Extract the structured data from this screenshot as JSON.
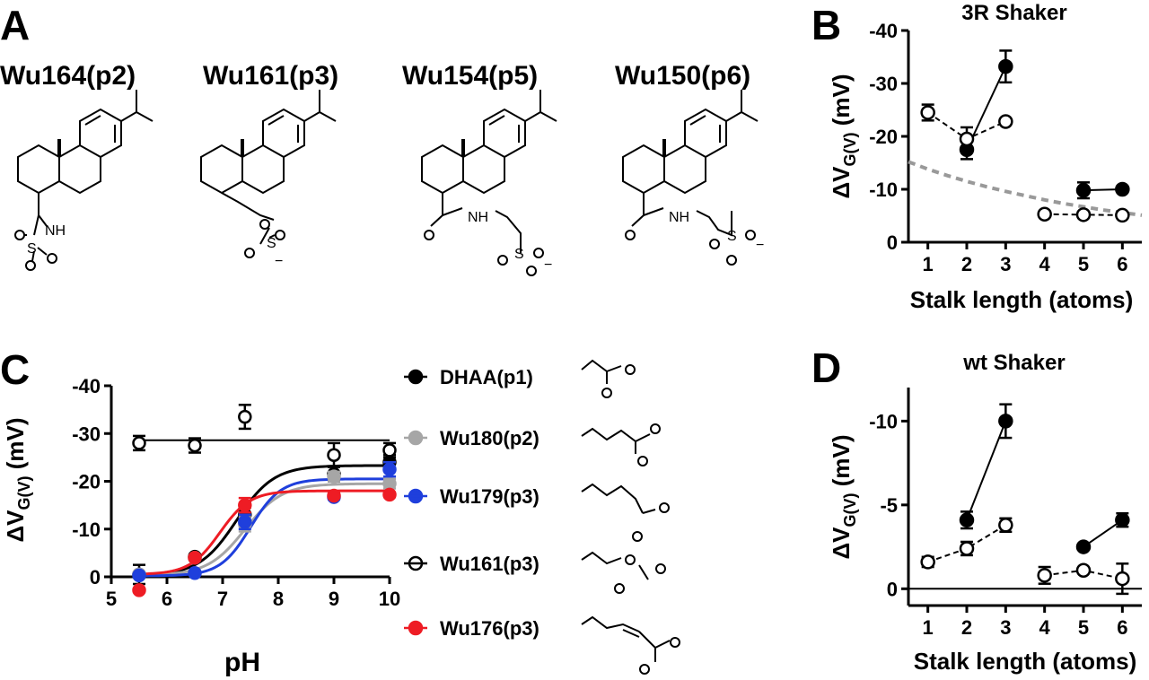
{
  "panels": {
    "A": "A",
    "B": "B",
    "C": "C",
    "D": "D"
  },
  "compounds": [
    {
      "name": "Wu164(p2)"
    },
    {
      "name": "Wu161(p3)"
    },
    {
      "name": "Wu154(p5)"
    },
    {
      "name": "Wu150(p6)"
    }
  ],
  "structure_labels": {
    "nh": "NH",
    "s": "S",
    "minus": "−"
  },
  "chart_data": [
    {
      "id": "B",
      "type": "scatter",
      "title": "3R Shaker",
      "xlabel": "Stalk length (atoms)",
      "ylabel_main": "ΔV",
      "ylabel_sub": "G(V)",
      "ylabel_unit": " (mV)",
      "xlim": [
        0.5,
        6.5
      ],
      "ylim": [
        0,
        -40
      ],
      "xticks": [
        1,
        2,
        3,
        4,
        5,
        6
      ],
      "yticks": [
        0,
        -10,
        -20,
        -30,
        -40
      ],
      "ytick_labels": [
        "0",
        "-10",
        "-20",
        "-30",
        "-40"
      ],
      "series": [
        {
          "fill": "#000000",
          "style": "solid",
          "segments": [
            [
              {
                "x": 2,
                "y": -17.5,
                "err": 1.8
              },
              {
                "x": 3,
                "y": -33.2,
                "err": 3.0
              }
            ],
            [
              {
                "x": 5,
                "y": -9.8,
                "err": 1.5
              },
              {
                "x": 6,
                "y": -10.0,
                "err": 0.5
              }
            ]
          ]
        },
        {
          "fill": "#ffffff",
          "style": "dashed",
          "segments": [
            [
              {
                "x": 1,
                "y": -24.5,
                "err": 1.5
              },
              {
                "x": 2,
                "y": -19.5,
                "err": 2.2
              },
              {
                "x": 3,
                "y": -22.8,
                "err": 0.5
              }
            ],
            [
              {
                "x": 4,
                "y": -5.3,
                "err": 0.5
              },
              {
                "x": 5,
                "y": -5.2,
                "err": 0.4
              },
              {
                "x": 6,
                "y": -5.1,
                "err": 0.4
              }
            ]
          ]
        }
      ],
      "trend": {
        "color": "#999999",
        "style": "dashed",
        "x": [
          0.5,
          1,
          1.5,
          2,
          2.5,
          3,
          3.5,
          4,
          4.5,
          5,
          5.5,
          6,
          6.5
        ],
        "y": [
          -15.2,
          -13.8,
          -12.6,
          -11.5,
          -10.5,
          -9.6,
          -8.8,
          -8.0,
          -7.3,
          -6.7,
          -6.1,
          -5.6,
          -5.1
        ]
      }
    },
    {
      "id": "C",
      "type": "scatter",
      "xlabel": "pH",
      "ylabel_main": "ΔV",
      "ylabel_sub": "G(V)",
      "ylabel_unit": " (mV)",
      "xlim": [
        5,
        10
      ],
      "ylim": [
        0,
        -40
      ],
      "xticks": [
        5,
        6,
        7,
        8,
        9,
        10
      ],
      "yticks": [
        0,
        -10,
        -20,
        -30,
        -40
      ],
      "ytick_labels": [
        "0",
        "-10",
        "-20",
        "-30",
        "-40"
      ],
      "series": [
        {
          "name": "DHAA(p1)",
          "color": "#000000",
          "fill": "#000000",
          "points": [
            {
              "x": 5.5,
              "y": -0.5,
              "err": 2.0
            },
            {
              "x": 6.5,
              "y": -4.2,
              "err": 0.5
            },
            {
              "x": 7.4,
              "y": -13.0,
              "err": 1.5
            },
            {
              "x": 9,
              "y": -21.5,
              "err": 1.5
            },
            {
              "x": 10,
              "y": -24.0,
              "err": 1.5
            }
          ],
          "fit": {
            "bottom": -0.3,
            "top": -23.3,
            "pKa": 7.25,
            "slope": 1.3
          }
        },
        {
          "name": "Wu180(p2)",
          "color": "#a6a6a6",
          "fill": "#a6a6a6",
          "points": [
            {
              "x": 5.5,
              "y": -0.5,
              "err": 0.5
            },
            {
              "x": 6.5,
              "y": -4.0,
              "err": 0.5
            },
            {
              "x": 7.4,
              "y": -11.0,
              "err": 1.5
            },
            {
              "x": 9,
              "y": -21.0,
              "err": 1.0
            },
            {
              "x": 10,
              "y": -19.5,
              "err": 1.0
            }
          ],
          "fit": {
            "bottom": -0.3,
            "top": -19.5,
            "pKa": 7.4,
            "slope": 1.3
          }
        },
        {
          "name": "Wu179(p3)",
          "color": "#1f3fdc",
          "fill": "#1f3fdc",
          "points": [
            {
              "x": 5.5,
              "y": -0.3,
              "err": 0.4
            },
            {
              "x": 6.5,
              "y": -0.8,
              "err": 0.4
            },
            {
              "x": 7.4,
              "y": -11.5,
              "err": 1.5
            },
            {
              "x": 9,
              "y": -16.7,
              "err": 0.5
            },
            {
              "x": 10,
              "y": -22.5,
              "err": 1.5
            }
          ],
          "fit": {
            "bottom": -0.2,
            "top": -20.5,
            "pKa": 7.5,
            "slope": 1.6
          }
        },
        {
          "name": "Wu161(p3)",
          "color": "#000000",
          "fill": "#ffffff",
          "points": [
            {
              "x": 5.5,
              "y": -28.0,
              "err": 1.5
            },
            {
              "x": 6.5,
              "y": -27.5,
              "err": 1.5
            },
            {
              "x": 7.4,
              "y": -33.5,
              "err": 2.5
            },
            {
              "x": 9,
              "y": -25.5,
              "err": 2.5
            },
            {
              "x": 10,
              "y": -26.5,
              "err": 1.5
            }
          ],
          "flat": -28.6
        },
        {
          "name": "Wu176(p3)",
          "color": "#ee1c24",
          "fill": "#ee1c24",
          "points": [
            {
              "x": 5.5,
              "y": 2.8,
              "err": 0.4
            },
            {
              "x": 6.5,
              "y": -4.0,
              "err": 0.4
            },
            {
              "x": 7.4,
              "y": -15.0,
              "err": 1.5
            },
            {
              "x": 9,
              "y": -17.0,
              "err": 0.5
            },
            {
              "x": 10,
              "y": -17.2,
              "err": 0.5
            }
          ],
          "fit": {
            "bottom": -0.5,
            "top": -18.0,
            "pKa": 6.95,
            "slope": 1.6
          }
        }
      ]
    },
    {
      "id": "D",
      "type": "scatter",
      "title": "wt Shaker",
      "xlabel": "Stalk length (atoms)",
      "ylabel_main": "ΔV",
      "ylabel_sub": "G(V)",
      "ylabel_unit": " (mV)",
      "xlim": [
        0.5,
        6.5
      ],
      "ylim": [
        1,
        -12
      ],
      "xticks": [
        1,
        2,
        3,
        4,
        5,
        6
      ],
      "yticks": [
        0,
        -5,
        -10
      ],
      "ytick_labels": [
        "0",
        "-5",
        "-10"
      ],
      "series": [
        {
          "fill": "#000000",
          "style": "solid",
          "segments": [
            [
              {
                "x": 2,
                "y": -4.1,
                "err": 0.5
              },
              {
                "x": 3,
                "y": -10.0,
                "err": 1.0
              }
            ],
            [
              {
                "x": 5,
                "y": -2.5,
                "err": 0.1
              },
              {
                "x": 6,
                "y": -4.1,
                "err": 0.4
              }
            ]
          ]
        },
        {
          "fill": "#ffffff",
          "style": "dashed",
          "segments": [
            [
              {
                "x": 1,
                "y": -1.6,
                "err": 0.3
              },
              {
                "x": 2,
                "y": -2.4,
                "err": 0.4
              },
              {
                "x": 3,
                "y": -3.8,
                "err": 0.4
              }
            ],
            [
              {
                "x": 4,
                "y": -0.8,
                "err": 0.5
              },
              {
                "x": 5,
                "y": -1.1,
                "err": 0.1
              },
              {
                "x": 6,
                "y": -0.6,
                "err": 0.9
              }
            ]
          ]
        }
      ]
    }
  ]
}
